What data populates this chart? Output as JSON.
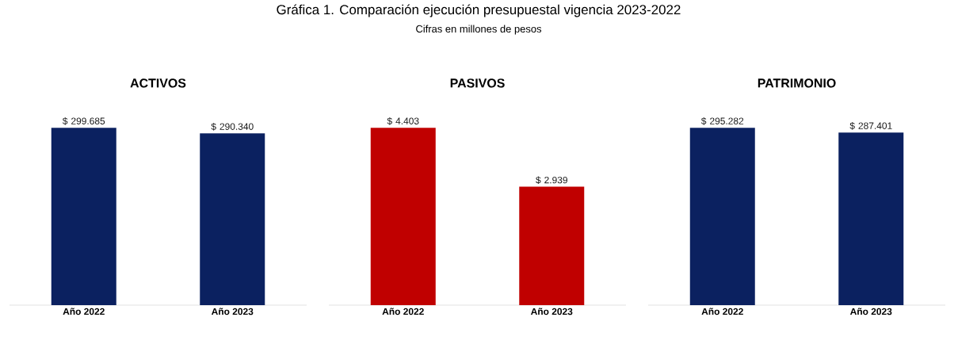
{
  "chart_data": [
    {
      "type": "bar",
      "title": "ACTIVOS",
      "annotations": [
        "Gráfica 1. Comparación ejecución presupuestal vigencia 2023-2022",
        "Cifras en millones de pesos"
      ],
      "categories": [
        "Año 2022",
        "Año 2023"
      ],
      "values": [
        299.685,
        290.34
      ],
      "value_labels": [
        "$ 299.685",
        "$ 290.340"
      ],
      "color": "#0b2160",
      "tick_labels": "x"
    },
    {
      "type": "bar",
      "title": "PASIVOS",
      "categories": [
        "Año 2022",
        "Año 2023"
      ],
      "values": [
        4.403,
        2.939
      ],
      "value_labels": [
        "$ 4.403",
        "$ 2.939"
      ],
      "color": "#c00000",
      "tick_labels": "x"
    },
    {
      "type": "bar",
      "title": "PATRIMONIO",
      "categories": [
        "Año 2022",
        "Año 2023"
      ],
      "values": [
        295.282,
        287.401
      ],
      "value_labels": [
        "$ 295.282",
        "$ 287.401"
      ],
      "color": "#0b2160",
      "tick_labels": "x"
    }
  ]
}
